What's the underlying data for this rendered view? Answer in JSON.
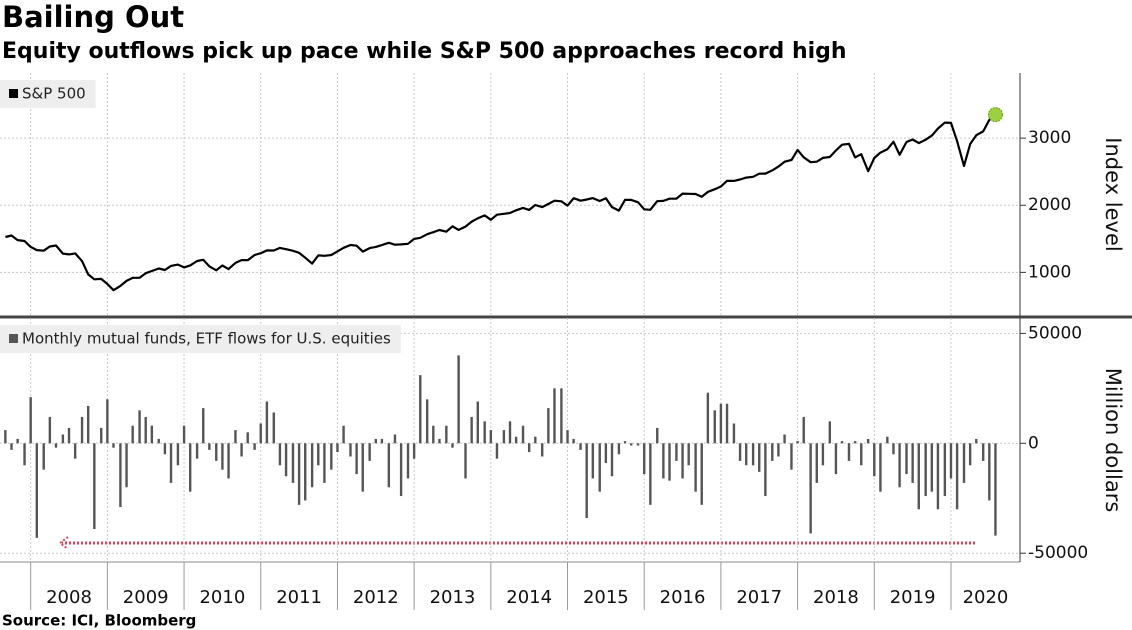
{
  "header": {
    "title": "Bailing Out",
    "subtitle": "Equity outflows pick up pace while S&P 500 approaches record high"
  },
  "footer": {
    "source": "Source: ICI, Bloomberg"
  },
  "chart_data": [
    {
      "type": "line",
      "ylabel": "Index level",
      "y_axis_side": "right",
      "grid": true,
      "legend": "top-left",
      "highlight_last": true,
      "highlight_color": "#9bd13c",
      "xlim": [
        2007.6,
        2020.9
      ],
      "ylim": [
        350,
        3970
      ],
      "yticks": [
        1000,
        2000,
        3000
      ],
      "x": [
        2007.67,
        2007.75,
        2007.83,
        2007.92,
        2008,
        2008.08,
        2008.17,
        2008.25,
        2008.33,
        2008.42,
        2008.5,
        2008.58,
        2008.67,
        2008.75,
        2008.83,
        2008.92,
        2009,
        2009.08,
        2009.17,
        2009.25,
        2009.33,
        2009.42,
        2009.5,
        2009.58,
        2009.67,
        2009.75,
        2009.83,
        2009.92,
        2010,
        2010.08,
        2010.17,
        2010.25,
        2010.33,
        2010.42,
        2010.5,
        2010.58,
        2010.67,
        2010.75,
        2010.83,
        2010.92,
        2011,
        2011.08,
        2011.17,
        2011.25,
        2011.33,
        2011.42,
        2011.5,
        2011.58,
        2011.67,
        2011.75,
        2011.83,
        2011.92,
        2012,
        2012.08,
        2012.17,
        2012.25,
        2012.33,
        2012.42,
        2012.5,
        2012.58,
        2012.67,
        2012.75,
        2012.83,
        2012.92,
        2013,
        2013.08,
        2013.17,
        2013.25,
        2013.33,
        2013.42,
        2013.5,
        2013.58,
        2013.67,
        2013.75,
        2013.83,
        2013.92,
        2014,
        2014.08,
        2014.17,
        2014.25,
        2014.33,
        2014.42,
        2014.5,
        2014.58,
        2014.67,
        2014.75,
        2014.83,
        2014.92,
        2015,
        2015.08,
        2015.17,
        2015.25,
        2015.33,
        2015.42,
        2015.5,
        2015.58,
        2015.67,
        2015.75,
        2015.83,
        2015.92,
        2016,
        2016.08,
        2016.17,
        2016.25,
        2016.33,
        2016.42,
        2016.5,
        2016.58,
        2016.67,
        2016.75,
        2016.83,
        2016.92,
        2017,
        2017.08,
        2017.17,
        2017.25,
        2017.33,
        2017.42,
        2017.5,
        2017.58,
        2017.67,
        2017.75,
        2017.83,
        2017.92,
        2018,
        2018.08,
        2018.17,
        2018.25,
        2018.33,
        2018.42,
        2018.5,
        2018.58,
        2018.67,
        2018.75,
        2018.83,
        2018.92,
        2019,
        2019.08,
        2019.17,
        2019.25,
        2019.33,
        2019.42,
        2019.5,
        2019.58,
        2019.67,
        2019.75,
        2019.83,
        2019.92,
        2020,
        2020.08,
        2020.17,
        2020.25,
        2020.33,
        2020.42,
        2020.5,
        2020.58
      ],
      "series": [
        {
          "name": "S&P 500",
          "color": "#000000",
          "values": [
            1527,
            1549,
            1481,
            1468,
            1379,
            1331,
            1323,
            1386,
            1400,
            1280,
            1267,
            1283,
            1166,
            969,
            896,
            903,
            826,
            735,
            798,
            873,
            919,
            919,
            987,
            1021,
            1057,
            1036,
            1096,
            1115,
            1074,
            1104,
            1169,
            1187,
            1089,
            1031,
            1102,
            1049,
            1141,
            1183,
            1181,
            1258,
            1286,
            1327,
            1326,
            1364,
            1345,
            1321,
            1292,
            1219,
            1131,
            1253,
            1247,
            1258,
            1312,
            1366,
            1408,
            1398,
            1310,
            1362,
            1379,
            1407,
            1441,
            1412,
            1416,
            1426,
            1498,
            1515,
            1569,
            1598,
            1631,
            1606,
            1686,
            1633,
            1682,
            1757,
            1806,
            1848,
            1783,
            1859,
            1872,
            1884,
            1924,
            1960,
            1931,
            2003,
            1972,
            2018,
            2068,
            2059,
            1995,
            2105,
            2068,
            2086,
            2107,
            2063,
            2104,
            1972,
            1920,
            2079,
            2080,
            2044,
            1940,
            1932,
            2060,
            2065,
            2097,
            2099,
            2174,
            2171,
            2168,
            2126,
            2199,
            2239,
            2279,
            2364,
            2363,
            2384,
            2412,
            2423,
            2470,
            2472,
            2519,
            2575,
            2648,
            2674,
            2824,
            2714,
            2641,
            2648,
            2705,
            2718,
            2816,
            2902,
            2914,
            2712,
            2760,
            2507,
            2704,
            2784,
            2834,
            2946,
            2752,
            2942,
            2980,
            2926,
            2977,
            3038,
            3141,
            3231,
            3226,
            2954,
            2585,
            2912,
            3044,
            3100,
            3271,
            3350
          ]
        }
      ]
    },
    {
      "type": "bar",
      "ylabel": "Million dollars",
      "y_axis_side": "right",
      "grid": true,
      "legend": "top-left",
      "xlim": [
        2007.6,
        2020.9
      ],
      "ylim": [
        -54000,
        57000
      ],
      "yticks": [
        -50000,
        0,
        50000
      ],
      "xticks": [
        2008,
        2009,
        2010,
        2011,
        2012,
        2013,
        2014,
        2015,
        2016,
        2017,
        2018,
        2019,
        2020
      ],
      "x": [
        2007.67,
        2007.75,
        2007.83,
        2007.92,
        2008,
        2008.08,
        2008.17,
        2008.25,
        2008.33,
        2008.42,
        2008.5,
        2008.58,
        2008.67,
        2008.75,
        2008.83,
        2008.92,
        2009,
        2009.08,
        2009.17,
        2009.25,
        2009.33,
        2009.42,
        2009.5,
        2009.58,
        2009.67,
        2009.75,
        2009.83,
        2009.92,
        2010,
        2010.08,
        2010.17,
        2010.25,
        2010.33,
        2010.42,
        2010.5,
        2010.58,
        2010.67,
        2010.75,
        2010.83,
        2010.92,
        2011,
        2011.08,
        2011.17,
        2011.25,
        2011.33,
        2011.42,
        2011.5,
        2011.58,
        2011.67,
        2011.75,
        2011.83,
        2011.92,
        2012,
        2012.08,
        2012.17,
        2012.25,
        2012.33,
        2012.42,
        2012.5,
        2012.58,
        2012.67,
        2012.75,
        2012.83,
        2012.92,
        2013,
        2013.08,
        2013.17,
        2013.25,
        2013.33,
        2013.42,
        2013.5,
        2013.58,
        2013.67,
        2013.75,
        2013.83,
        2013.92,
        2014,
        2014.08,
        2014.17,
        2014.25,
        2014.33,
        2014.42,
        2014.5,
        2014.58,
        2014.67,
        2014.75,
        2014.83,
        2014.92,
        2015,
        2015.08,
        2015.17,
        2015.25,
        2015.33,
        2015.42,
        2015.5,
        2015.58,
        2015.67,
        2015.75,
        2015.83,
        2015.92,
        2016,
        2016.08,
        2016.17,
        2016.25,
        2016.33,
        2016.42,
        2016.5,
        2016.58,
        2016.67,
        2016.75,
        2016.83,
        2016.92,
        2017,
        2017.08,
        2017.17,
        2017.25,
        2017.33,
        2017.42,
        2017.5,
        2017.58,
        2017.67,
        2017.75,
        2017.83,
        2017.92,
        2018,
        2018.08,
        2018.17,
        2018.25,
        2018.33,
        2018.42,
        2018.5,
        2018.58,
        2018.67,
        2018.75,
        2018.83,
        2018.92,
        2019,
        2019.08,
        2019.17,
        2019.25,
        2019.33,
        2019.42,
        2019.5,
        2019.58,
        2019.67,
        2019.75,
        2019.83,
        2019.92,
        2020,
        2020.08,
        2020.17,
        2020.25,
        2020.33,
        2020.42,
        2020.5,
        2020.58
      ],
      "series": [
        {
          "name": "Monthly mutual funds, ETF flows for U.S. equities",
          "color": "#555555",
          "values": [
            6000,
            -3000,
            2000,
            -10000,
            21000,
            -43000,
            -12000,
            12000,
            -2000,
            4000,
            7000,
            -7000,
            12000,
            17000,
            -39000,
            7000,
            20000,
            -2000,
            -29000,
            -20000,
            8000,
            15000,
            12000,
            8000,
            2000,
            -5000,
            -18000,
            -10000,
            8000,
            -22000,
            -7000,
            16000,
            -3000,
            -8000,
            -12000,
            -16000,
            6000,
            -6000,
            5000,
            -3000,
            9000,
            19000,
            14000,
            -10000,
            -15000,
            -18000,
            -28000,
            -26000,
            -20000,
            -10000,
            -18000,
            -12000,
            -4000,
            8000,
            -6000,
            -14000,
            -22000,
            -8000,
            2000,
            2000,
            -20000,
            4000,
            -24000,
            -16000,
            -7000,
            31000,
            20000,
            8000,
            2000,
            8000,
            -2000,
            40000,
            -16000,
            12000,
            19000,
            10000,
            6000,
            -7000,
            6000,
            10000,
            3000,
            8000,
            -4000,
            3000,
            -6000,
            16000,
            25000,
            25000,
            6000,
            2000,
            -3000,
            -34000,
            -16000,
            -22000,
            -9000,
            -15000,
            -5000,
            1000,
            -1000,
            -1000,
            -14000,
            -28000,
            7000,
            -16000,
            -17000,
            -8000,
            -16000,
            -10000,
            -22000,
            -28000,
            23000,
            15000,
            18000,
            18000,
            9000,
            -8000,
            -10000,
            -10000,
            -13000,
            -24000,
            -8000,
            -6000,
            4000,
            -12000,
            1000,
            12000,
            -41000,
            -18000,
            -10000,
            10000,
            -14000,
            1000,
            -8000,
            1000,
            -10000,
            2000,
            -15000,
            -22000,
            3000,
            -5000,
            -20000,
            -14000,
            -18000,
            -30000,
            -24000,
            -22000,
            -30000,
            -24000,
            -16000,
            -30000,
            -18000,
            -10000,
            2000,
            -8000,
            -26000,
            -42000
          ]
        }
      ]
    }
  ]
}
